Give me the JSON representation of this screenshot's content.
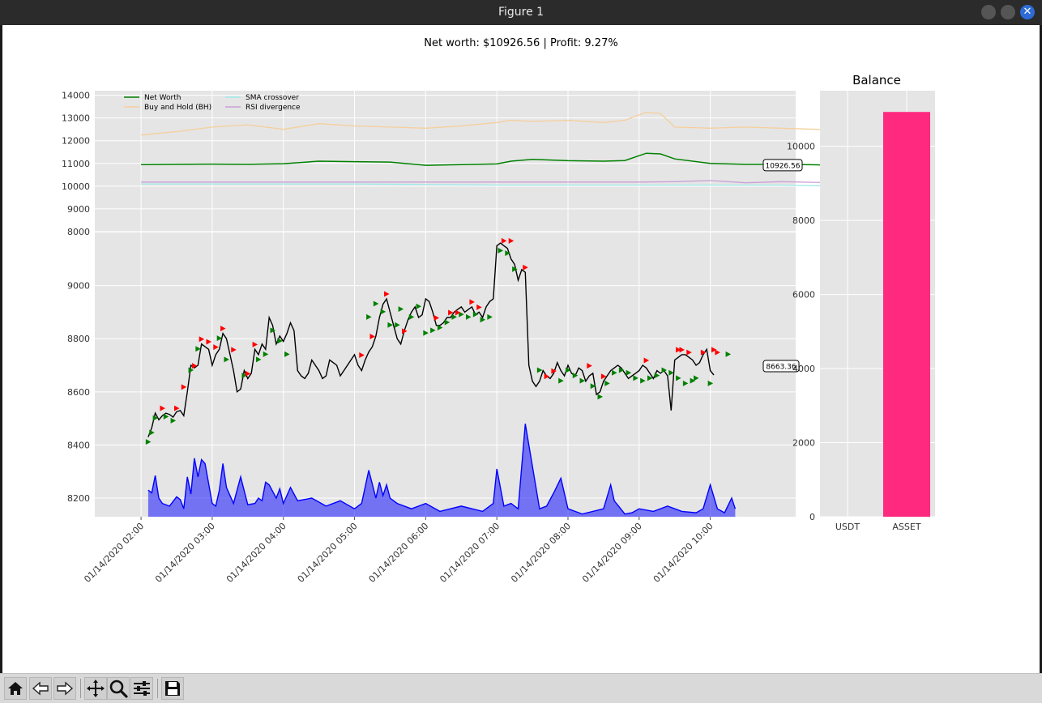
{
  "window": {
    "title": "Figure 1"
  },
  "figure": {
    "suptitle": "Net worth: $10926.56 | Profit: 9.27%"
  },
  "colors": {
    "net_worth": "#008000",
    "buy_hold": "#f5cf9c",
    "sma": "#9eeaea",
    "rsi": "#c9a0d6",
    "price": "#000000",
    "volume": "#0000ff",
    "buy_marker": "#008000",
    "sell_marker": "#ff0000",
    "balance_bar": "#ff2a7f",
    "axes_bg": "#e5e5e5"
  },
  "toolbar": {
    "icons": [
      "home-icon",
      "back-arrow-icon",
      "forward-arrow-icon",
      "pan-icon",
      "zoom-icon",
      "configure-icon",
      "save-icon"
    ]
  },
  "chart_data": [
    {
      "type": "line",
      "name": "networth-panel",
      "ylim": [
        8000,
        14200
      ],
      "yticks": [
        "14000",
        "13000",
        "12000",
        "11000",
        "10000",
        "9000",
        "8000"
      ],
      "ytick_values": [
        14000,
        13000,
        12000,
        11000,
        10000,
        9000,
        8000
      ],
      "legend_placement": "top-left",
      "series": [
        {
          "name": "Net Worth",
          "x": [
            0.0,
            0.5,
            1.0,
            1.5,
            2.0,
            2.5,
            3.0,
            3.5,
            4.0,
            4.5,
            5.0,
            5.2,
            5.5,
            6.0,
            6.5,
            6.8,
            7.1,
            7.3,
            7.5,
            8.0,
            8.5,
            9.0,
            9.5,
            9.8,
            10.0,
            10.4
          ],
          "values": [
            10950,
            10960,
            10970,
            10960,
            10990,
            11100,
            11080,
            11060,
            10920,
            10950,
            10980,
            11100,
            11180,
            11120,
            11100,
            11130,
            11450,
            11420,
            11200,
            11000,
            10960,
            10960,
            10940,
            10900,
            11050,
            10926.56
          ]
        },
        {
          "name": "Buy and Hold (BH)",
          "x": [
            0.0,
            0.5,
            1.0,
            1.5,
            2.0,
            2.5,
            3.0,
            3.5,
            4.0,
            4.5,
            5.0,
            5.2,
            5.5,
            6.0,
            6.5,
            6.8,
            7.1,
            7.3,
            7.5,
            8.0,
            8.5,
            9.0,
            9.5,
            9.8,
            10.0,
            10.4
          ],
          "values": [
            12250,
            12400,
            12600,
            12700,
            12500,
            12750,
            12650,
            12600,
            12550,
            12650,
            12800,
            12900,
            12850,
            12900,
            12800,
            12900,
            13250,
            13200,
            12600,
            12550,
            12600,
            12550,
            12500,
            12400,
            12650,
            12580
          ]
        },
        {
          "name": "SMA crossover",
          "x": [
            0.0,
            3.0,
            5.0,
            7.0,
            8.0,
            9.0,
            9.8,
            10.0,
            10.4
          ],
          "values": [
            10100,
            10100,
            10050,
            10050,
            10050,
            10050,
            10000,
            10100,
            10100
          ]
        },
        {
          "name": "RSI divergence",
          "x": [
            0.0,
            3.0,
            5.0,
            7.0,
            7.5,
            8.0,
            8.5,
            9.0,
            9.8,
            10.0,
            10.4
          ],
          "values": [
            10180,
            10180,
            10180,
            10180,
            10200,
            10250,
            10150,
            10200,
            10150,
            10280,
            10150
          ]
        }
      ],
      "annotations": [
        {
          "text": "10926.56"
        }
      ]
    },
    {
      "type": "line",
      "name": "price-panel",
      "ylim": [
        8130,
        9200
      ],
      "yticks": [
        "9000",
        "8800",
        "8600",
        "8400",
        "8200"
      ],
      "ytick_values": [
        9000,
        8800,
        8600,
        8400,
        8200
      ],
      "x_ticks": [
        "01/14/2020 02:00",
        "01/14/2020 03:00",
        "01/14/2020 04:00",
        "01/14/2020 05:00",
        "01/14/2020 06:00",
        "01/14/2020 07:00",
        "01/14/2020 08:00",
        "01/14/2020 09:00",
        "01/14/2020 10:00"
      ],
      "x_tick_values": [
        0,
        1,
        2,
        3,
        4,
        5,
        6,
        7,
        8
      ],
      "x_range": [
        -0.65,
        9.2
      ],
      "price_x": [
        0.1,
        0.15,
        0.2,
        0.25,
        0.3,
        0.35,
        0.4,
        0.45,
        0.5,
        0.55,
        0.6,
        0.65,
        0.7,
        0.75,
        0.8,
        0.85,
        0.9,
        0.95,
        1.0,
        1.05,
        1.1,
        1.15,
        1.2,
        1.25,
        1.3,
        1.35,
        1.4,
        1.45,
        1.5,
        1.55,
        1.6,
        1.65,
        1.7,
        1.75,
        1.8,
        1.85,
        1.9,
        1.95,
        2.0,
        2.05,
        2.1,
        2.15,
        2.2,
        2.25,
        2.3,
        2.35,
        2.4,
        2.45,
        2.5,
        2.55,
        2.6,
        2.65,
        2.7,
        2.75,
        2.8,
        2.85,
        2.9,
        2.95,
        3.0,
        3.05,
        3.1,
        3.15,
        3.2,
        3.25,
        3.3,
        3.35,
        3.4,
        3.45,
        3.5,
        3.55,
        3.6,
        3.65,
        3.7,
        3.75,
        3.8,
        3.85,
        3.9,
        3.95,
        4.0,
        4.05,
        4.1,
        4.15,
        4.2,
        4.25,
        4.3,
        4.35,
        4.4,
        4.45,
        4.5,
        4.55,
        4.6,
        4.65,
        4.7,
        4.75,
        4.8,
        4.85,
        4.9,
        4.95,
        5.0,
        5.05,
        5.1,
        5.15,
        5.2,
        5.25,
        5.3,
        5.35,
        5.4,
        5.45,
        5.5,
        5.55,
        5.6,
        5.65,
        5.7,
        5.75,
        5.8,
        5.85,
        5.9,
        5.95,
        6.0,
        6.05,
        6.1,
        6.15,
        6.2,
        6.25,
        6.3,
        6.35,
        6.4,
        6.45,
        6.5,
        6.55,
        6.6,
        6.65,
        6.7,
        6.75,
        6.8,
        6.85,
        6.9,
        6.95,
        7.0,
        7.05,
        7.1,
        7.15,
        7.2,
        7.25,
        7.3,
        7.35,
        7.4,
        7.45,
        7.5,
        7.55,
        7.6,
        7.65,
        7.7,
        7.75,
        7.8,
        7.85,
        7.9,
        7.95,
        8.0,
        8.05,
        8.1,
        8.15,
        8.2,
        8.25,
        8.3,
        8.35
      ],
      "price": [
        8430,
        8465,
        8520,
        8495,
        8510,
        8520,
        8515,
        8505,
        8525,
        8530,
        8510,
        8600,
        8700,
        8690,
        8700,
        8780,
        8770,
        8760,
        8700,
        8740,
        8760,
        8820,
        8800,
        8740,
        8680,
        8600,
        8610,
        8680,
        8650,
        8670,
        8760,
        8740,
        8780,
        8760,
        8880,
        8850,
        8780,
        8810,
        8790,
        8820,
        8860,
        8830,
        8680,
        8660,
        8650,
        8670,
        8720,
        8700,
        8680,
        8650,
        8660,
        8720,
        8710,
        8700,
        8660,
        8680,
        8700,
        8720,
        8740,
        8700,
        8680,
        8720,
        8750,
        8770,
        8810,
        8880,
        8930,
        8950,
        8900,
        8850,
        8800,
        8780,
        8830,
        8870,
        8900,
        8920,
        8880,
        8890,
        8950,
        8940,
        8900,
        8850,
        8850,
        8860,
        8880,
        8880,
        8900,
        8910,
        8920,
        8900,
        8910,
        8920,
        8890,
        8900,
        8880,
        8920,
        8940,
        8950,
        9150,
        9160,
        9150,
        9140,
        9100,
        9080,
        9020,
        9060,
        9050,
        8700,
        8640,
        8620,
        8640,
        8680,
        8660,
        8650,
        8670,
        8710,
        8680,
        8660,
        8700,
        8670,
        8660,
        8690,
        8680,
        8640,
        8660,
        8670,
        8590,
        8600,
        8640,
        8660,
        8680,
        8690,
        8700,
        8690,
        8670,
        8650,
        8660,
        8670,
        8680,
        8700,
        8690,
        8670,
        8650,
        8680,
        8670,
        8680,
        8660,
        8530,
        8720,
        8730,
        8740,
        8740,
        8730,
        8720,
        8700,
        8710,
        8740,
        8760,
        8680,
        8663.36
      ],
      "buys_x": [
        0.1,
        0.15,
        0.2,
        0.35,
        0.45,
        0.7,
        0.8,
        1.1,
        1.2,
        1.45,
        1.65,
        1.75,
        1.85,
        1.95,
        2.05,
        3.2,
        3.3,
        3.4,
        3.5,
        3.6,
        3.65,
        3.8,
        3.9,
        4.0,
        4.1,
        4.2,
        4.3,
        4.4,
        4.5,
        4.6,
        4.7,
        4.8,
        4.9,
        5.05,
        5.15,
        5.25,
        5.6,
        5.9,
        6.0,
        6.1,
        6.2,
        6.35,
        6.45,
        6.55,
        6.65,
        6.75,
        6.85,
        6.95,
        7.05,
        7.15,
        7.25,
        7.35,
        7.45,
        7.55,
        7.65,
        7.75,
        7.8,
        8.0,
        8.25
      ],
      "buys_y": [
        8430,
        8465,
        8520,
        8525,
        8510,
        8700,
        8780,
        8820,
        8740,
        8680,
        8740,
        8760,
        8850,
        8810,
        8760,
        8900,
        8950,
        8920,
        8870,
        8870,
        8930,
        8900,
        8940,
        8840,
        8850,
        8860,
        8880,
        8900,
        8910,
        8900,
        8910,
        8890,
        8900,
        9150,
        9140,
        9080,
        8700,
        8660,
        8700,
        8680,
        8660,
        8640,
        8600,
        8650,
        8690,
        8700,
        8690,
        8670,
        8660,
        8670,
        8680,
        8700,
        8690,
        8670,
        8650,
        8660,
        8670,
        8650,
        8760
      ],
      "sells_x": [
        0.3,
        0.5,
        0.6,
        0.75,
        0.85,
        0.95,
        1.05,
        1.15,
        1.3,
        1.5,
        1.6,
        3.1,
        3.25,
        3.45,
        3.7,
        4.15,
        4.35,
        4.45,
        4.65,
        4.75,
        5.1,
        5.2,
        5.4,
        5.7,
        5.8,
        6.3,
        6.5,
        7.1,
        7.55,
        7.6,
        7.7,
        7.9,
        8.05,
        8.1
      ],
      "sells_y": [
        8520,
        8520,
        8600,
        8680,
        8780,
        8770,
        8750,
        8820,
        8740,
        8650,
        8760,
        8720,
        8790,
        8950,
        8810,
        8860,
        8880,
        8880,
        8920,
        8900,
        9150,
        9150,
        9050,
        8640,
        8660,
        8680,
        8640,
        8700,
        8740,
        8740,
        8730,
        8730,
        8740,
        8730
      ],
      "volume_x": [
        0.1,
        0.15,
        0.2,
        0.25,
        0.3,
        0.4,
        0.5,
        0.55,
        0.6,
        0.65,
        0.7,
        0.75,
        0.8,
        0.85,
        0.9,
        1.0,
        1.05,
        1.1,
        1.15,
        1.2,
        1.3,
        1.35,
        1.4,
        1.5,
        1.6,
        1.65,
        1.7,
        1.75,
        1.8,
        1.9,
        1.95,
        2.0,
        2.1,
        2.2,
        2.4,
        2.6,
        2.8,
        3.0,
        3.1,
        3.2,
        3.3,
        3.35,
        3.4,
        3.45,
        3.5,
        3.6,
        3.8,
        4.0,
        4.2,
        4.5,
        4.8,
        4.95,
        5.0,
        5.1,
        5.2,
        5.3,
        5.4,
        5.6,
        5.7,
        5.8,
        5.9,
        6.0,
        6.1,
        6.2,
        6.5,
        6.6,
        6.65,
        6.8,
        6.9,
        7.0,
        7.2,
        7.4,
        7.6,
        7.8,
        7.9,
        8.0,
        8.1,
        8.2,
        8.3,
        8.35
      ],
      "volume": [
        8230,
        8220,
        8285,
        8200,
        8180,
        8170,
        8205,
        8195,
        8160,
        8280,
        8215,
        8350,
        8280,
        8345,
        8330,
        8180,
        8170,
        8230,
        8330,
        8240,
        8180,
        8230,
        8280,
        8175,
        8180,
        8200,
        8190,
        8260,
        8250,
        8200,
        8235,
        8180,
        8240,
        8190,
        8200,
        8170,
        8190,
        8160,
        8180,
        8305,
        8200,
        8260,
        8210,
        8250,
        8200,
        8180,
        8160,
        8180,
        8150,
        8170,
        8150,
        8180,
        8310,
        8170,
        8180,
        8160,
        8480,
        8160,
        8170,
        8220,
        8275,
        8160,
        8150,
        8140,
        8160,
        8250,
        8190,
        8140,
        8145,
        8160,
        8150,
        8170,
        8150,
        8145,
        8160,
        8250,
        8160,
        8145,
        8200,
        8160
      ]
    },
    {
      "type": "bar",
      "name": "balance-panel",
      "title": "Balance",
      "categories": [
        "USDT",
        "ASSET"
      ],
      "values": [
        0,
        10926.56
      ],
      "ylim": [
        0,
        11500
      ],
      "yticks": [
        "10000",
        "8000",
        "6000",
        "4000",
        "2000",
        "0"
      ],
      "ytick_values": [
        10000,
        8000,
        6000,
        4000,
        2000,
        0
      ]
    }
  ]
}
